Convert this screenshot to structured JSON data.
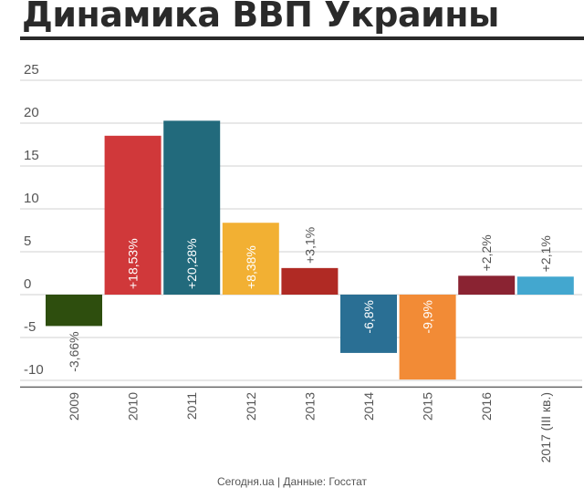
{
  "title": "Динамика ВВП Украины",
  "footer": "Сегодня.ua | Данные: Госстат",
  "chart_data": {
    "type": "bar",
    "title": "Динамика ВВП Украины",
    "xlabel": "",
    "ylabel": "",
    "ylim": [
      -11,
      27
    ],
    "yticks": [
      25,
      20,
      15,
      10,
      5,
      0,
      -5,
      -10
    ],
    "grid": true,
    "legend": "none",
    "categories": [
      "2009",
      "2010",
      "2011",
      "2012",
      "2013",
      "2014",
      "2015",
      "2016",
      "2017 (III кв.)"
    ],
    "values": [
      -3.66,
      18.53,
      20.28,
      8.38,
      3.1,
      -6.8,
      -9.9,
      2.2,
      2.1
    ],
    "labels": [
      "-3,66%",
      "+18,53%",
      "+20,28%",
      "+8,38%",
      "+3,1%",
      "-6,8%",
      "-9,9%",
      "+2,2%",
      "+2,1%"
    ],
    "colors": [
      "#2e4e0e",
      "#d0383a",
      "#226a7c",
      "#f2b033",
      "#b02a24",
      "#2a6f94",
      "#f28b36",
      "#8a2332",
      "#43a7cf"
    ],
    "colors_axis": {
      "grid": "#d0d0d0",
      "axis": "#666666",
      "text": "#555555",
      "inside_label": "#ffffff"
    }
  }
}
